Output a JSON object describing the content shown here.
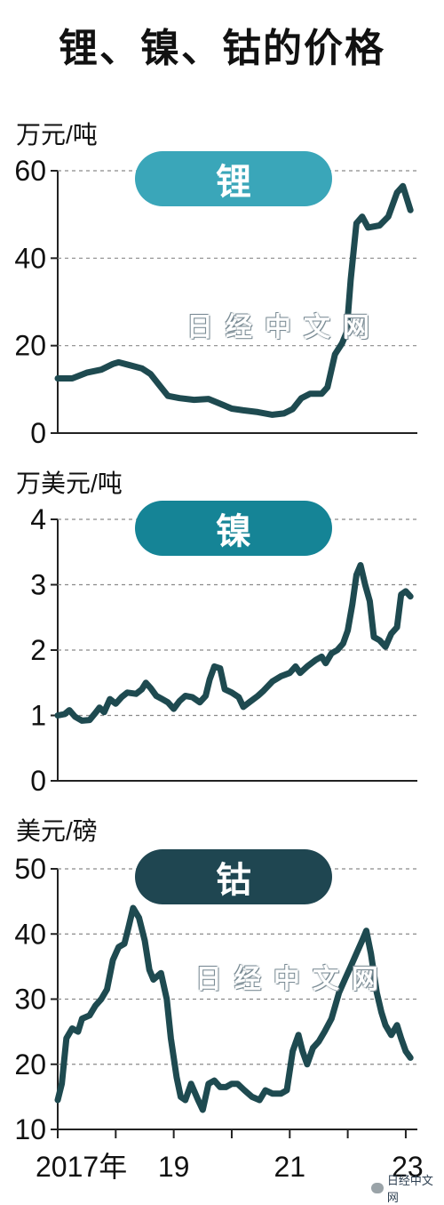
{
  "title": "锂、镍、钴的价格",
  "watermark": "日经中文网",
  "footer_watermark": "日经中文网",
  "colors": {
    "lithium_pill": "#3aa6b9",
    "nickel_pill": "#158496",
    "cobalt_pill": "#1f4651",
    "line": "#1e4a50",
    "grid": "#8a8a8a"
  },
  "x_axis": {
    "ticks": [
      "2017年",
      "19",
      "21",
      "23"
    ]
  },
  "chart_data": [
    {
      "type": "line",
      "panel_label": "锂",
      "unit": "万元/吨",
      "ylim": [
        0,
        60
      ],
      "yticks": [
        0,
        20,
        40,
        60
      ],
      "xlim": [
        2017,
        2023.2
      ],
      "series": [
        {
          "values": [
            [
              2017.0,
              12.5
            ],
            [
              2017.25,
              12.5
            ],
            [
              2017.5,
              13.8
            ],
            [
              2017.75,
              14.5
            ],
            [
              2017.95,
              15.8
            ],
            [
              2018.05,
              16.2
            ],
            [
              2018.25,
              15.5
            ],
            [
              2018.45,
              14.8
            ],
            [
              2018.6,
              13.5
            ],
            [
              2018.75,
              11.0
            ],
            [
              2018.9,
              8.5
            ],
            [
              2019.1,
              8.0
            ],
            [
              2019.35,
              7.6
            ],
            [
              2019.6,
              7.8
            ],
            [
              2019.75,
              7.0
            ],
            [
              2020.0,
              5.6
            ],
            [
              2020.2,
              5.2
            ],
            [
              2020.45,
              4.8
            ],
            [
              2020.7,
              4.2
            ],
            [
              2020.9,
              4.5
            ],
            [
              2021.05,
              5.5
            ],
            [
              2021.2,
              8.0
            ],
            [
              2021.35,
              9.0
            ],
            [
              2021.55,
              9.0
            ],
            [
              2021.65,
              10.5
            ],
            [
              2021.78,
              18.0
            ],
            [
              2021.9,
              20.5
            ],
            [
              2021.98,
              23.0
            ],
            [
              2022.05,
              35.0
            ],
            [
              2022.15,
              48.0
            ],
            [
              2022.25,
              49.5
            ],
            [
              2022.35,
              47.0
            ],
            [
              2022.55,
              47.5
            ],
            [
              2022.7,
              49.5
            ],
            [
              2022.85,
              55.0
            ],
            [
              2022.95,
              56.5
            ],
            [
              2023.08,
              51.0
            ]
          ]
        }
      ]
    },
    {
      "type": "line",
      "panel_label": "镍",
      "unit": "万美元/吨",
      "ylim": [
        0,
        4
      ],
      "yticks": [
        0,
        1,
        2,
        3,
        4
      ],
      "xlim": [
        2017,
        2023.2
      ],
      "series": [
        {
          "values": [
            [
              2017.0,
              1.0
            ],
            [
              2017.12,
              1.02
            ],
            [
              2017.2,
              1.08
            ],
            [
              2017.3,
              0.98
            ],
            [
              2017.42,
              0.92
            ],
            [
              2017.55,
              0.93
            ],
            [
              2017.65,
              1.04
            ],
            [
              2017.72,
              1.12
            ],
            [
              2017.8,
              1.05
            ],
            [
              2017.9,
              1.25
            ],
            [
              2018.0,
              1.18
            ],
            [
              2018.1,
              1.28
            ],
            [
              2018.2,
              1.35
            ],
            [
              2018.35,
              1.33
            ],
            [
              2018.45,
              1.4
            ],
            [
              2018.52,
              1.5
            ],
            [
              2018.6,
              1.42
            ],
            [
              2018.7,
              1.3
            ],
            [
              2018.8,
              1.25
            ],
            [
              2018.9,
              1.2
            ],
            [
              2019.0,
              1.1
            ],
            [
              2019.1,
              1.22
            ],
            [
              2019.2,
              1.3
            ],
            [
              2019.32,
              1.28
            ],
            [
              2019.45,
              1.2
            ],
            [
              2019.55,
              1.3
            ],
            [
              2019.62,
              1.55
            ],
            [
              2019.7,
              1.75
            ],
            [
              2019.8,
              1.72
            ],
            [
              2019.88,
              1.4
            ],
            [
              2020.0,
              1.35
            ],
            [
              2020.12,
              1.28
            ],
            [
              2020.2,
              1.13
            ],
            [
              2020.3,
              1.2
            ],
            [
              2020.45,
              1.3
            ],
            [
              2020.55,
              1.38
            ],
            [
              2020.7,
              1.52
            ],
            [
              2020.85,
              1.6
            ],
            [
              2021.0,
              1.65
            ],
            [
              2021.1,
              1.75
            ],
            [
              2021.18,
              1.65
            ],
            [
              2021.3,
              1.75
            ],
            [
              2021.45,
              1.85
            ],
            [
              2021.55,
              1.9
            ],
            [
              2021.62,
              1.8
            ],
            [
              2021.72,
              1.95
            ],
            [
              2021.82,
              2.0
            ],
            [
              2021.92,
              2.1
            ],
            [
              2022.0,
              2.3
            ],
            [
              2022.08,
              2.7
            ],
            [
              2022.15,
              3.15
            ],
            [
              2022.22,
              3.3
            ],
            [
              2022.3,
              3.0
            ],
            [
              2022.38,
              2.75
            ],
            [
              2022.45,
              2.2
            ],
            [
              2022.55,
              2.15
            ],
            [
              2022.65,
              2.05
            ],
            [
              2022.75,
              2.25
            ],
            [
              2022.85,
              2.35
            ],
            [
              2022.92,
              2.85
            ],
            [
              2023.0,
              2.9
            ],
            [
              2023.08,
              2.82
            ]
          ]
        }
      ]
    },
    {
      "type": "line",
      "panel_label": "钴",
      "unit": "美元/磅",
      "ylim": [
        10,
        50
      ],
      "yticks": [
        10,
        20,
        30,
        40,
        50
      ],
      "xlim": [
        2017,
        2023.2
      ],
      "series": [
        {
          "values": [
            [
              2017.0,
              14.5
            ],
            [
              2017.07,
              17.0
            ],
            [
              2017.15,
              24.0
            ],
            [
              2017.25,
              25.5
            ],
            [
              2017.35,
              25.0
            ],
            [
              2017.42,
              27.0
            ],
            [
              2017.55,
              27.5
            ],
            [
              2017.65,
              29.0
            ],
            [
              2017.75,
              30.0
            ],
            [
              2017.85,
              31.5
            ],
            [
              2017.95,
              36.0
            ],
            [
              2018.05,
              38.0
            ],
            [
              2018.15,
              38.5
            ],
            [
              2018.22,
              41.0
            ],
            [
              2018.3,
              44.0
            ],
            [
              2018.4,
              42.5
            ],
            [
              2018.5,
              39.0
            ],
            [
              2018.58,
              34.5
            ],
            [
              2018.65,
              33.0
            ],
            [
              2018.78,
              34.0
            ],
            [
              2018.88,
              30.0
            ],
            [
              2018.95,
              24.0
            ],
            [
              2019.05,
              18.0
            ],
            [
              2019.12,
              15.0
            ],
            [
              2019.2,
              14.5
            ],
            [
              2019.3,
              17.0
            ],
            [
              2019.42,
              14.5
            ],
            [
              2019.5,
              13.0
            ],
            [
              2019.6,
              17.0
            ],
            [
              2019.7,
              17.5
            ],
            [
              2019.8,
              16.5
            ],
            [
              2019.9,
              16.5
            ],
            [
              2020.0,
              17.0
            ],
            [
              2020.1,
              17.0
            ],
            [
              2020.22,
              16.0
            ],
            [
              2020.35,
              15.0
            ],
            [
              2020.48,
              14.5
            ],
            [
              2020.58,
              16.0
            ],
            [
              2020.7,
              15.5
            ],
            [
              2020.85,
              15.5
            ],
            [
              2020.95,
              16.0
            ],
            [
              2021.05,
              22.0
            ],
            [
              2021.15,
              24.5
            ],
            [
              2021.22,
              22.0
            ],
            [
              2021.3,
              20.0
            ],
            [
              2021.4,
              22.5
            ],
            [
              2021.5,
              23.5
            ],
            [
              2021.6,
              25.0
            ],
            [
              2021.72,
              27.0
            ],
            [
              2021.85,
              31.0
            ],
            [
              2021.95,
              33.0
            ],
            [
              2022.05,
              35.0
            ],
            [
              2022.15,
              37.0
            ],
            [
              2022.25,
              39.0
            ],
            [
              2022.32,
              40.5
            ],
            [
              2022.4,
              37.0
            ],
            [
              2022.5,
              31.0
            ],
            [
              2022.58,
              28.0
            ],
            [
              2022.65,
              26.0
            ],
            [
              2022.75,
              24.5
            ],
            [
              2022.85,
              26.0
            ],
            [
              2022.92,
              24.0
            ],
            [
              2023.0,
              22.0
            ],
            [
              2023.08,
              21.0
            ]
          ]
        }
      ]
    }
  ]
}
